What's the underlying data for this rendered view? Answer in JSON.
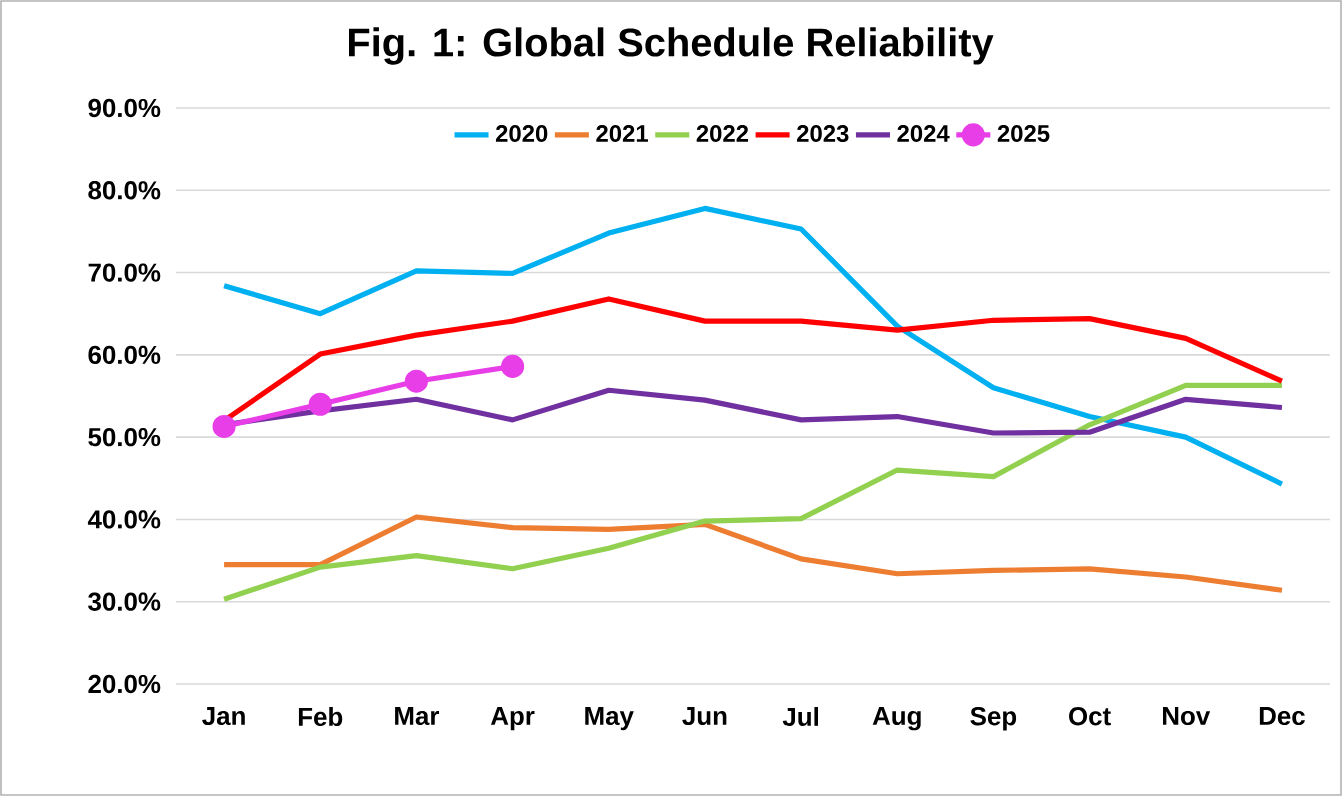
{
  "chart_data": {
    "type": "line",
    "title": "Fig. 1: Global Schedule Reliability",
    "categories": [
      "Jan",
      "Feb",
      "Mar",
      "Apr",
      "May",
      "Jun",
      "Jul",
      "Aug",
      "Sep",
      "Oct",
      "Nov",
      "Dec"
    ],
    "ylim": [
      20,
      90
    ],
    "yticks": [
      {
        "value": 20,
        "label": "20.0%"
      },
      {
        "value": 30,
        "label": "30.0%"
      },
      {
        "value": 40,
        "label": "40.0%"
      },
      {
        "value": 50,
        "label": "50.0%"
      },
      {
        "value": 60,
        "label": "60.0%"
      },
      {
        "value": 70,
        "label": "70.0%"
      },
      {
        "value": 80,
        "label": "80.0%"
      },
      {
        "value": 90,
        "label": "90.0%"
      }
    ],
    "grid": "y",
    "legend": "top",
    "marker": "none",
    "line_style": "solid",
    "series": [
      {
        "name": "2020",
        "color": "#00b0f0",
        "values": [
          68.4,
          65,
          70.2,
          69.9,
          74.8,
          77.8,
          75.3,
          63.5,
          56,
          52.5,
          50,
          44.3
        ]
      },
      {
        "name": "2021",
        "color": "#ed7d31",
        "values": [
          34.5,
          34.5,
          40.3,
          39,
          38.8,
          39.4,
          35.2,
          33.4,
          33.8,
          34,
          33,
          31.4
        ]
      },
      {
        "name": "2022",
        "color": "#92d050",
        "values": [
          30.3,
          34.2,
          35.6,
          34,
          36.5,
          39.8,
          40.1,
          46,
          45.2,
          51.5,
          56.3,
          56.3
        ]
      },
      {
        "name": "2023",
        "color": "#ff0000",
        "values": [
          52,
          60.1,
          62.4,
          64.1,
          66.8,
          64.1,
          64.1,
          63,
          64.2,
          64.4,
          62,
          56.8
        ]
      },
      {
        "name": "2024",
        "color": "#7030a0",
        "values": [
          51.5,
          53.2,
          54.6,
          52.1,
          55.7,
          54.5,
          52.1,
          52.5,
          50.5,
          50.6,
          54.6,
          53.6
        ]
      },
      {
        "name": "2025",
        "color": "#e83ee8",
        "marker": "circle",
        "values": [
          51.3,
          54,
          56.8,
          58.6,
          null,
          null,
          null,
          null,
          null,
          null,
          null,
          null
        ]
      }
    ]
  }
}
